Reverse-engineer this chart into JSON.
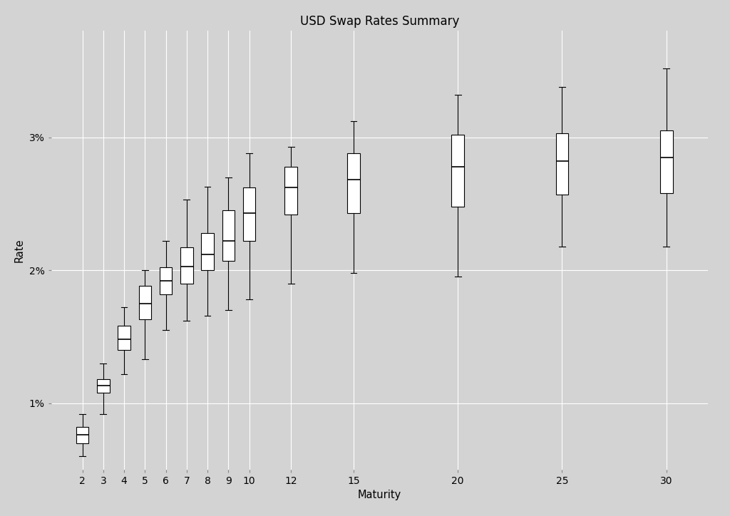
{
  "title": "USD Swap Rates Summary",
  "xlabel": "Maturity",
  "ylabel": "Rate",
  "background_color": "#d3d3d3",
  "grid_color": "#ffffff",
  "box_fill": "#ffffff",
  "box_edge": "#000000",
  "maturities": [
    2,
    3,
    4,
    5,
    6,
    7,
    8,
    9,
    10,
    12,
    15,
    20,
    25,
    30
  ],
  "xtick_labels": [
    "2",
    "3",
    "4",
    "5",
    "6",
    "7",
    "8",
    "9",
    "10",
    "12",
    "15",
    "20",
    "25",
    "30"
  ],
  "yticks": [
    0.01,
    0.02,
    0.03
  ],
  "ytick_labels": [
    "1%",
    "2%",
    "3%"
  ],
  "xlim": [
    0.5,
    32
  ],
  "ylim": [
    0.005,
    0.038
  ],
  "box_width": 0.6,
  "boxplot_stats": {
    "2": {
      "whislo": 0.006,
      "q1": 0.007,
      "med": 0.0076,
      "q3": 0.0082,
      "whishi": 0.0092
    },
    "3": {
      "whislo": 0.0092,
      "q1": 0.0108,
      "med": 0.0113,
      "q3": 0.0118,
      "whishi": 0.013
    },
    "4": {
      "whislo": 0.0122,
      "q1": 0.014,
      "med": 0.0148,
      "q3": 0.0158,
      "whishi": 0.0172
    },
    "5": {
      "whislo": 0.0133,
      "q1": 0.0163,
      "med": 0.0175,
      "q3": 0.0188,
      "whishi": 0.02
    },
    "6": {
      "whislo": 0.0155,
      "q1": 0.0182,
      "med": 0.0192,
      "q3": 0.0202,
      "whishi": 0.0222
    },
    "7": {
      "whislo": 0.0162,
      "q1": 0.019,
      "med": 0.0203,
      "q3": 0.0217,
      "whishi": 0.0253
    },
    "8": {
      "whislo": 0.0166,
      "q1": 0.02,
      "med": 0.0212,
      "q3": 0.0228,
      "whishi": 0.0263
    },
    "9": {
      "whislo": 0.017,
      "q1": 0.0207,
      "med": 0.0222,
      "q3": 0.0245,
      "whishi": 0.027
    },
    "10": {
      "whislo": 0.0178,
      "q1": 0.0222,
      "med": 0.0243,
      "q3": 0.0262,
      "whishi": 0.0288
    },
    "12": {
      "whislo": 0.019,
      "q1": 0.0242,
      "med": 0.0262,
      "q3": 0.0278,
      "whishi": 0.0293
    },
    "15": {
      "whislo": 0.0198,
      "q1": 0.0243,
      "med": 0.0268,
      "q3": 0.0288,
      "whishi": 0.0312
    },
    "20": {
      "whislo": 0.0195,
      "q1": 0.0248,
      "med": 0.0278,
      "q3": 0.0302,
      "whishi": 0.0332
    },
    "25": {
      "whislo": 0.0218,
      "q1": 0.0257,
      "med": 0.0282,
      "q3": 0.0303,
      "whishi": 0.0338
    },
    "30": {
      "whislo": 0.0218,
      "q1": 0.0258,
      "med": 0.0285,
      "q3": 0.0305,
      "whishi": 0.0352
    }
  }
}
